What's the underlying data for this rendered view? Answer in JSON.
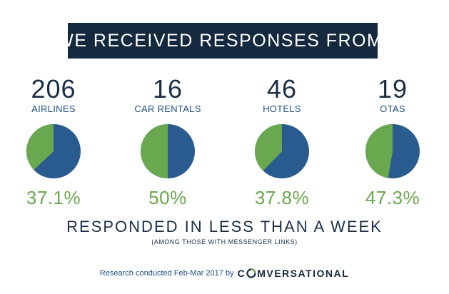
{
  "header": {
    "title": "WE RECEIVED RESPONSES FROM:"
  },
  "chart_data": {
    "type": "pie",
    "colors": {
      "responded": "#6aa84f",
      "not_responded": "#2a5b8f"
    },
    "pies": [
      {
        "count": "206",
        "label": "AIRLINES",
        "percent_label": "37.1%",
        "value": 37.1
      },
      {
        "count": "16",
        "label": "CAR RENTALS",
        "percent_label": "50%",
        "value": 50
      },
      {
        "count": "46",
        "label": "HOTELS",
        "percent_label": "37.8%",
        "value": 37.8
      },
      {
        "count": "19",
        "label": "OTAS",
        "percent_label": "47.3%",
        "value": 47.3
      }
    ],
    "caption": "RESPONDED IN LESS THAN A WEEK",
    "subcaption": "(AMONG THOSE WITH MESSENGER LINKS)"
  },
  "footer": {
    "text": "Research conducted Feb-Mar 2017 by",
    "brand_first": "C",
    "brand_rest": "MVERSATIONAL",
    "brand_accent": "#6aa84f"
  }
}
